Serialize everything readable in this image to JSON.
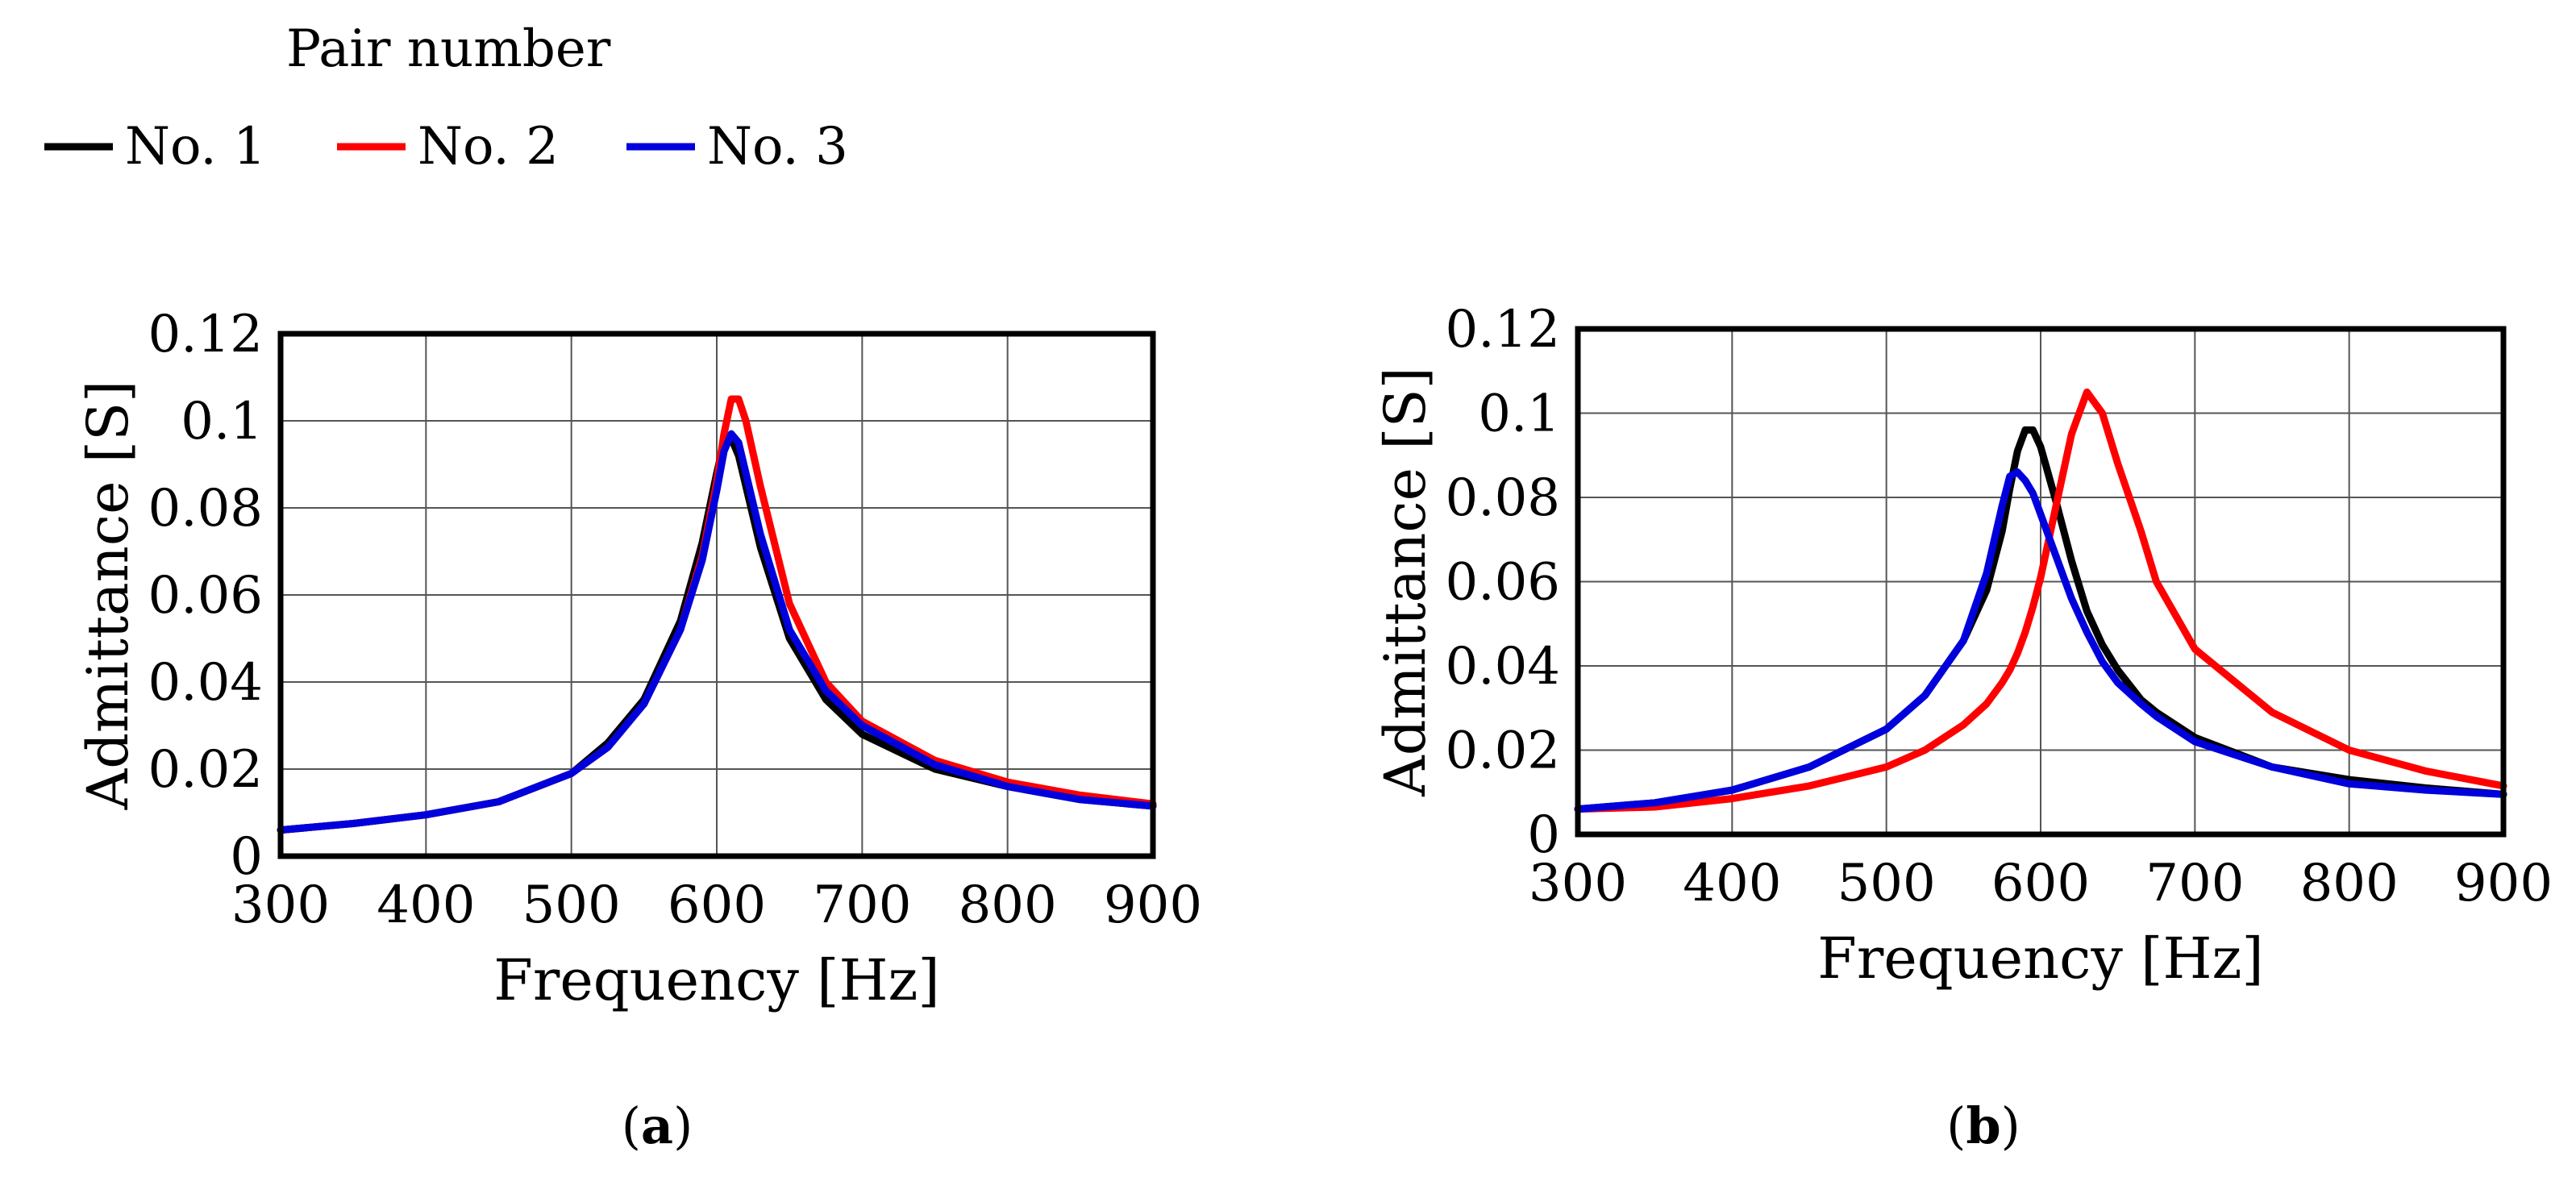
{
  "legend": {
    "title": "Pair number",
    "entries": [
      {
        "name": "No. 1",
        "color": "#000000"
      },
      {
        "name": "No. 2",
        "color": "#ff0000"
      },
      {
        "name": "No. 3",
        "color": "#0000dd"
      }
    ]
  },
  "chart_data": [
    {
      "type": "line",
      "panel_label": "a",
      "xlabel": "Frequency [Hz]",
      "ylabel": "Admittance [S]",
      "xlim": [
        300,
        900
      ],
      "ylim": [
        0,
        0.12
      ],
      "xticks": [
        "300",
        "400",
        "500",
        "600",
        "700",
        "800",
        "900"
      ],
      "yticks": [
        "0",
        "0.02",
        "0.04",
        "0.06",
        "0.08",
        "0.1",
        "0.12"
      ],
      "grid": true,
      "x": [
        300,
        350,
        400,
        450,
        500,
        525,
        550,
        575,
        590,
        600,
        605,
        610,
        615,
        620,
        630,
        650,
        675,
        700,
        750,
        800,
        850,
        900
      ],
      "series": [
        {
          "name": "No. 1",
          "values": [
            0.006,
            0.0075,
            0.0095,
            0.0125,
            0.019,
            0.026,
            0.036,
            0.054,
            0.072,
            0.088,
            0.095,
            0.096,
            0.092,
            0.085,
            0.071,
            0.05,
            0.036,
            0.028,
            0.02,
            0.016,
            0.013,
            0.0115
          ]
        },
        {
          "name": "No. 2",
          "values": [
            0.006,
            0.0075,
            0.0095,
            0.0125,
            0.019,
            0.025,
            0.035,
            0.052,
            0.069,
            0.086,
            0.097,
            0.105,
            0.105,
            0.1,
            0.085,
            0.058,
            0.04,
            0.031,
            0.022,
            0.017,
            0.014,
            0.012
          ]
        },
        {
          "name": "No. 3",
          "values": [
            0.006,
            0.0075,
            0.0095,
            0.0125,
            0.019,
            0.025,
            0.035,
            0.052,
            0.068,
            0.084,
            0.093,
            0.097,
            0.095,
            0.088,
            0.074,
            0.052,
            0.038,
            0.03,
            0.021,
            0.016,
            0.013,
            0.0115
          ]
        }
      ]
    },
    {
      "type": "line",
      "panel_label": "b",
      "xlabel": "Frequency [Hz]",
      "ylabel": "Admittance [S]",
      "xlim": [
        300,
        900
      ],
      "ylim": [
        0,
        0.12
      ],
      "xticks": [
        "300",
        "400",
        "500",
        "600",
        "700",
        "800",
        "900"
      ],
      "yticks": [
        "0",
        "0.02",
        "0.04",
        "0.06",
        "0.08",
        "0.1",
        "0.12"
      ],
      "grid": true,
      "x": [
        300,
        350,
        400,
        450,
        500,
        525,
        550,
        565,
        575,
        580,
        585,
        590,
        595,
        600,
        610,
        620,
        625,
        630,
        640,
        650,
        665,
        675,
        700,
        750,
        800,
        850,
        900
      ],
      "series": [
        {
          "name": "No. 1",
          "values": [
            0.006,
            0.0075,
            0.0105,
            0.016,
            0.025,
            0.033,
            0.046,
            0.058,
            0.072,
            0.082,
            0.091,
            0.096,
            0.096,
            0.092,
            0.079,
            0.065,
            0.059,
            0.053,
            0.045,
            0.039,
            0.032,
            0.029,
            0.023,
            0.016,
            0.013,
            0.011,
            0.0095
          ]
        },
        {
          "name": "No. 2",
          "values": [
            0.006,
            0.0065,
            0.0085,
            0.0115,
            0.016,
            0.02,
            0.026,
            0.031,
            0.036,
            0.039,
            0.043,
            0.048,
            0.054,
            0.061,
            0.078,
            0.095,
            0.1,
            0.105,
            0.1,
            0.088,
            0.072,
            0.06,
            0.044,
            0.029,
            0.02,
            0.015,
            0.0115
          ]
        },
        {
          "name": "No. 3",
          "values": [
            0.006,
            0.0075,
            0.0105,
            0.016,
            0.025,
            0.033,
            0.046,
            0.062,
            0.078,
            0.085,
            0.086,
            0.084,
            0.081,
            0.076,
            0.066,
            0.056,
            0.052,
            0.048,
            0.041,
            0.036,
            0.031,
            0.028,
            0.022,
            0.016,
            0.012,
            0.0105,
            0.0095
          ]
        }
      ]
    }
  ]
}
